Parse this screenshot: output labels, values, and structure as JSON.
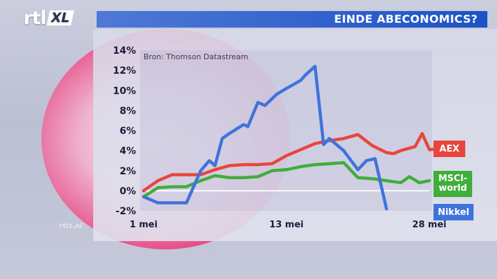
{
  "header": {
    "logo_main": "rtl",
    "logo_badge": "XL",
    "title": "EINDE ABECONOMICS?"
  },
  "footer": {
    "watermark": "rtlz.nl"
  },
  "colors": {
    "title_bar": "#1d52c6",
    "aex": "#e8463c",
    "msci": "#3fae3a",
    "nikkei": "#3f73dc"
  },
  "chart_data": {
    "type": "line",
    "source": "Bron: Thomson Datastream",
    "x_tick_labels": [
      "1 mei",
      "13 mei",
      "28 mei"
    ],
    "x_tick_index": [
      0,
      10,
      20
    ],
    "y_ticks": [
      -2,
      0,
      2,
      4,
      6,
      8,
      10,
      12,
      14
    ],
    "y_tick_labels": [
      "-2%",
      "0%",
      "2%",
      "4%",
      "6%",
      "8%",
      "10%",
      "12%",
      "14%"
    ],
    "ylim": [
      -2,
      14
    ],
    "n_points": 21,
    "grid": false,
    "zero_line": true,
    "series": [
      {
        "name": "AEX",
        "legend_label": "AEX",
        "color": "#e8463c",
        "points": [
          [
            0,
            0
          ],
          [
            1,
            1
          ],
          [
            2,
            1.6
          ],
          [
            3,
            1.6
          ],
          [
            4,
            1.6
          ],
          [
            5,
            2.1
          ],
          [
            6,
            2.5
          ],
          [
            7,
            2.6
          ],
          [
            8,
            2.6
          ],
          [
            9,
            2.7
          ],
          [
            10,
            3.5
          ],
          [
            11,
            4.1
          ],
          [
            12,
            4.7
          ],
          [
            13,
            5
          ],
          [
            14,
            5.2
          ],
          [
            15,
            5.6
          ],
          [
            16,
            4.5
          ],
          [
            17,
            3.8
          ],
          [
            17.5,
            3.7
          ],
          [
            18,
            4
          ],
          [
            19,
            4.4
          ],
          [
            19.5,
            5.7
          ],
          [
            20,
            4.1
          ],
          [
            20.8,
            4.2
          ]
        ]
      },
      {
        "name": "MSCI-world",
        "legend_label": "MSCI-world",
        "color": "#3fae3a",
        "points": [
          [
            0,
            -0.6
          ],
          [
            1,
            0.3
          ],
          [
            2,
            0.4
          ],
          [
            3,
            0.4
          ],
          [
            4,
            1
          ],
          [
            5,
            1.5
          ],
          [
            6,
            1.3
          ],
          [
            7,
            1.3
          ],
          [
            8,
            1.4
          ],
          [
            9,
            2
          ],
          [
            10,
            2.1
          ],
          [
            11,
            2.4
          ],
          [
            12,
            2.6
          ],
          [
            13,
            2.7
          ],
          [
            14,
            2.8
          ],
          [
            15,
            1.3
          ],
          [
            16,
            1.2
          ],
          [
            17,
            1
          ],
          [
            18,
            0.8
          ],
          [
            18.6,
            1.4
          ],
          [
            19.3,
            0.8
          ],
          [
            20,
            1
          ]
        ]
      },
      {
        "name": "Nikkel",
        "legend_label": "Nikkel",
        "color": "#3f73dc",
        "points": [
          [
            0,
            -0.6
          ],
          [
            1,
            -1.2
          ],
          [
            2,
            -1.2
          ],
          [
            3,
            -1.2
          ],
          [
            4,
            2
          ],
          [
            4.6,
            3
          ],
          [
            5,
            2.5
          ],
          [
            5.5,
            5.2
          ],
          [
            6,
            5.7
          ],
          [
            7,
            6.6
          ],
          [
            7.3,
            6.4
          ],
          [
            8,
            8.8
          ],
          [
            8.5,
            8.5
          ],
          [
            9.3,
            9.6
          ],
          [
            10,
            10.2
          ],
          [
            11,
            11
          ],
          [
            11.3,
            11.5
          ],
          [
            12,
            12.4
          ],
          [
            12.6,
            4.6
          ],
          [
            13,
            5.2
          ],
          [
            14,
            4
          ],
          [
            15,
            2.1
          ],
          [
            15.6,
            3
          ],
          [
            16.2,
            3.2
          ],
          [
            17,
            -1.8
          ]
        ]
      }
    ]
  }
}
